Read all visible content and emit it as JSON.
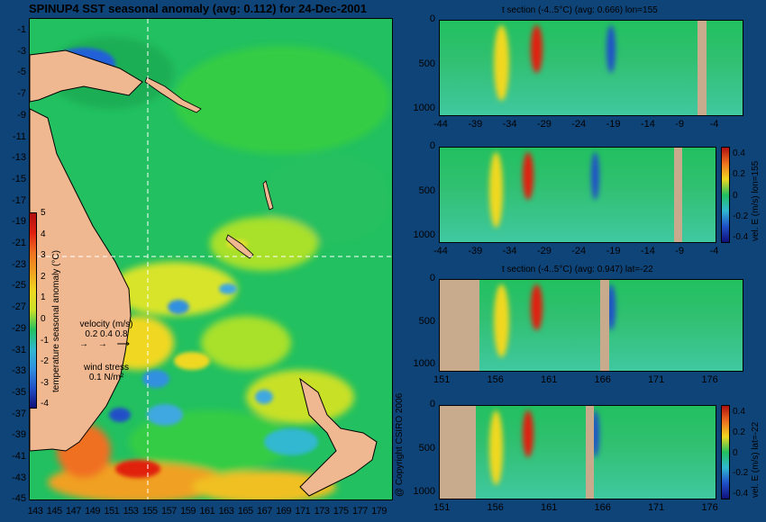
{
  "map": {
    "title": "SPINUP4 SST seasonal anomaly (avg: 0.112) for 24-Dec-2001",
    "lat_ticks": [
      "-1",
      "-3",
      "-5",
      "-7",
      "-9",
      "-11",
      "-13",
      "-15",
      "-17",
      "-19",
      "-21",
      "-23",
      "-25",
      "-27",
      "-29",
      "-31",
      "-33",
      "-35",
      "-37",
      "-39",
      "-41",
      "-43",
      "-45"
    ],
    "lon_ticks": [
      "143",
      "145",
      "147",
      "149",
      "151",
      "153",
      "155",
      "157",
      "159",
      "161",
      "163",
      "165",
      "167",
      "169",
      "171",
      "173",
      "175",
      "177",
      "179"
    ],
    "colorbar_ticks": [
      "5",
      "4",
      "3",
      "2",
      "1",
      "0",
      "-1",
      "-2",
      "-3",
      "-4"
    ],
    "colorbar_label": "temperature seasonal anomaly (°C)",
    "velocity_label": "velocity (m/s)",
    "velocity_scale": "0.2 0.4 0.8",
    "wind_label": "wind stress",
    "wind_scale": "0.1 N/m²",
    "section_lon": 155,
    "section_lat": -22,
    "colors": {
      "land": "#f0b890",
      "background": "#0f4478"
    }
  },
  "panels": [
    {
      "title": "t section (-4..5°C) (avg: 0.666) lon=155",
      "y_ticks": [
        "0",
        "500",
        "1000"
      ],
      "x_ticks": [
        "-44",
        "-39",
        "-34",
        "-29",
        "-24",
        "-19",
        "-14",
        "-9",
        "-4"
      ]
    },
    {
      "title": "",
      "y_ticks": [
        "0",
        "500",
        "1000"
      ],
      "x_ticks": [
        "-44",
        "-39",
        "-34",
        "-29",
        "-24",
        "-19",
        "-14",
        "-9",
        "-4"
      ],
      "colorbar_ticks": [
        "0.4",
        "0.2",
        "0",
        "-0.2",
        "-0.4"
      ],
      "colorbar_label": "vel. E (m/s) lon=155"
    },
    {
      "title": "t section (-4..5°C) (avg: 0.947) lat=-22",
      "y_ticks": [
        "0",
        "500",
        "1000"
      ],
      "x_ticks": [
        "151",
        "156",
        "161",
        "166",
        "171",
        "176"
      ]
    },
    {
      "title": "",
      "y_ticks": [
        "0",
        "500",
        "1000"
      ],
      "x_ticks": [
        "151",
        "156",
        "161",
        "166",
        "171",
        "176"
      ],
      "colorbar_ticks": [
        "0.4",
        "0.2",
        "0",
        "-0.2",
        "-0.4"
      ],
      "colorbar_label": "vel. E (m/s) lat=-22"
    }
  ],
  "copyright": "@ Copyright CSIRO 2006"
}
